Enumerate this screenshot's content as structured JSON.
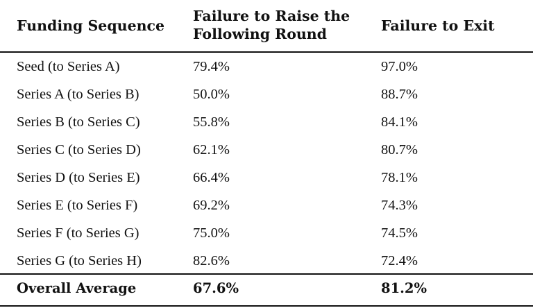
{
  "table": {
    "headers": {
      "col1": "Funding Sequence",
      "col2_line1": "Failure to Raise the",
      "col2_line2": "Following Round",
      "col3": "Failure to Exit"
    },
    "rows": [
      {
        "sequence": "Seed (to Series A)",
        "raise": "79.4%",
        "exit": "97.0%"
      },
      {
        "sequence": "Series A (to Series B)",
        "raise": "50.0%",
        "exit": "88.7%"
      },
      {
        "sequence": "Series B (to Series C)",
        "raise": "55.8%",
        "exit": "84.1%"
      },
      {
        "sequence": "Series C (to Series D)",
        "raise": "62.1%",
        "exit": "80.7%"
      },
      {
        "sequence": "Series D (to Series E)",
        "raise": "66.4%",
        "exit": "78.1%"
      },
      {
        "sequence": "Series E (to Series F)",
        "raise": "69.2%",
        "exit": "74.3%"
      },
      {
        "sequence": "Series F (to Series G)",
        "raise": "75.0%",
        "exit": "74.5%"
      },
      {
        "sequence": "Series G (to Series H)",
        "raise": "82.6%",
        "exit": "72.4%"
      }
    ],
    "footer": {
      "label": "Overall Average",
      "raise": "67.6%",
      "exit": "81.2%"
    }
  }
}
